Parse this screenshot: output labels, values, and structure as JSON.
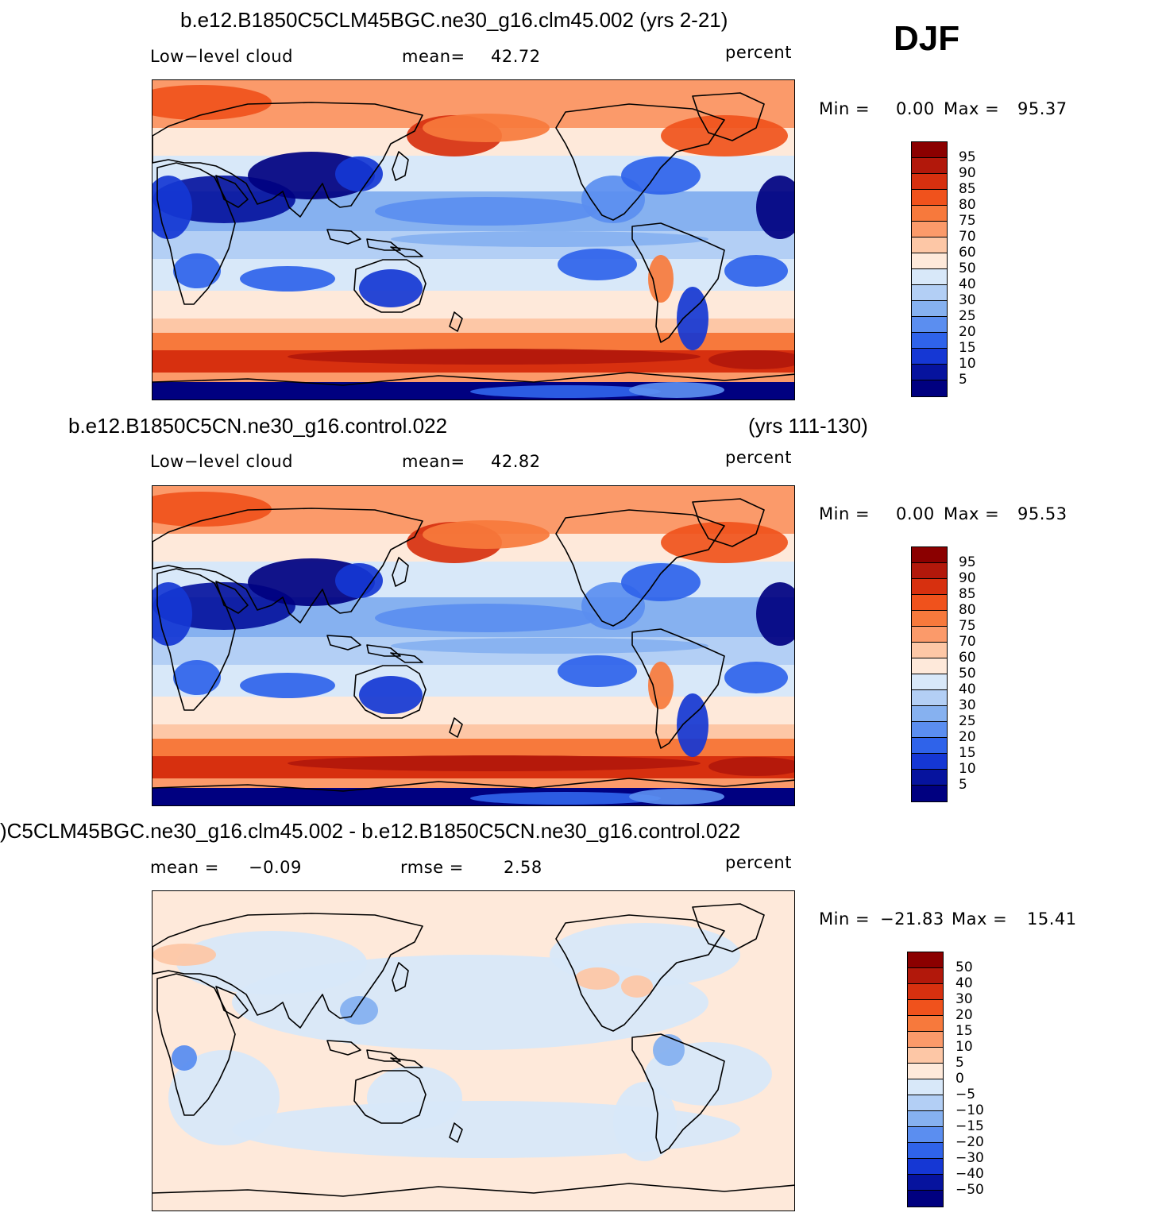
{
  "season": "DJF",
  "panels": [
    {
      "title": "b.e12.B1850C5CLM45BGC.ne30_g16.clm45.002 (yrs 2-21)",
      "years": "",
      "variable": "Low−level cloud",
      "stat1_label": "mean=",
      "stat1_value": "42.72",
      "stat2_label": "",
      "stat2_value": "",
      "units": "percent",
      "min_label": "Min =",
      "min_value": "0.00",
      "max_label": "Max =",
      "max_value": "95.37",
      "colorbar": {
        "labels": [
          "95",
          "90",
          "85",
          "80",
          "75",
          "70",
          "60",
          "50",
          "40",
          "30",
          "25",
          "20",
          "15",
          "10",
          "5"
        ],
        "colors": [
          "#8b0000",
          "#b2180b",
          "#d7300f",
          "#f0521c",
          "#f7793c",
          "#fb9a6a",
          "#fdc7a6",
          "#fee9da",
          "#d8e8f9",
          "#b3cff5",
          "#86b1f0",
          "#5b8ef0",
          "#2f63ea",
          "#1537d4",
          "#06139e",
          "#000080"
        ]
      },
      "field": {
        "type": "model",
        "variant": 0
      }
    },
    {
      "title": "b.e12.B1850C5CN.ne30_g16.control.022",
      "years": "(yrs 111-130)",
      "variable": "Low−level cloud",
      "stat1_label": "mean=",
      "stat1_value": "42.82",
      "stat2_label": "",
      "stat2_value": "",
      "units": "percent",
      "min_label": "Min =",
      "min_value": "0.00",
      "max_label": "Max =",
      "max_value": "95.53",
      "colorbar": {
        "labels": [
          "95",
          "90",
          "85",
          "80",
          "75",
          "70",
          "60",
          "50",
          "40",
          "30",
          "25",
          "20",
          "15",
          "10",
          "5"
        ],
        "colors": [
          "#8b0000",
          "#b2180b",
          "#d7300f",
          "#f0521c",
          "#f7793c",
          "#fb9a6a",
          "#fdc7a6",
          "#fee9da",
          "#d8e8f9",
          "#b3cff5",
          "#86b1f0",
          "#5b8ef0",
          "#2f63ea",
          "#1537d4",
          "#06139e",
          "#000080"
        ]
      },
      "field": {
        "type": "model",
        "variant": 1
      }
    },
    {
      "title": ")C5CLM45BGC.ne30_g16.clm45.002 - b.e12.B1850C5CN.ne30_g16.control.022",
      "years": "",
      "variable": "",
      "stat1_label": "mean =",
      "stat1_value": "−0.09",
      "stat2_label": "rmse =",
      "stat2_value": "2.58",
      "units": "percent",
      "min_label": "Min =",
      "min_value": "−21.83",
      "max_label": "Max =",
      "max_value": "15.41",
      "colorbar": {
        "labels": [
          "50",
          "40",
          "30",
          "20",
          "15",
          "10",
          "5",
          "0",
          "−5",
          "−10",
          "−15",
          "−20",
          "−30",
          "−40",
          "−50"
        ],
        "colors": [
          "#8b0000",
          "#b2180b",
          "#d7300f",
          "#f0521c",
          "#f7793c",
          "#fb9a6a",
          "#fdc7a6",
          "#fee9da",
          "#d8e8f9",
          "#b3cff5",
          "#86b1f0",
          "#5b8ef0",
          "#2f63ea",
          "#1537d4",
          "#06139e",
          "#000080"
        ]
      },
      "field": {
        "type": "diff",
        "variant": 2
      }
    }
  ]
}
